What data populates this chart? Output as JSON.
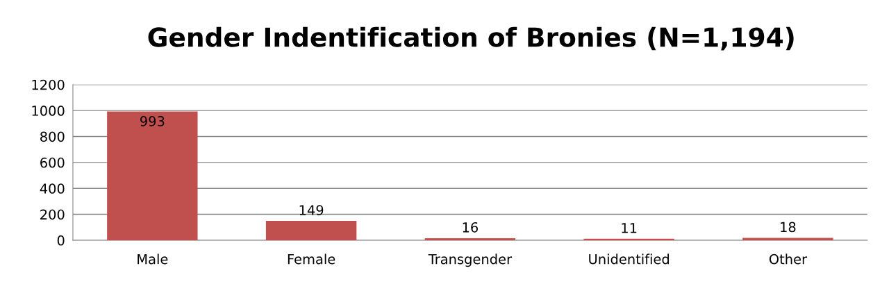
{
  "chart_data": {
    "type": "bar",
    "title": "Gender Indentification of Bronies (N=1,194)",
    "categories": [
      "Male",
      "Female",
      "Transgender",
      "Unidentified",
      "Other"
    ],
    "values": [
      993,
      149,
      16,
      11,
      18
    ],
    "color": "#c0504d",
    "ylim": [
      0,
      1200
    ],
    "yticks": [
      0,
      200,
      400,
      600,
      800,
      1000,
      1200
    ],
    "grid": "y",
    "data_labels": true
  }
}
